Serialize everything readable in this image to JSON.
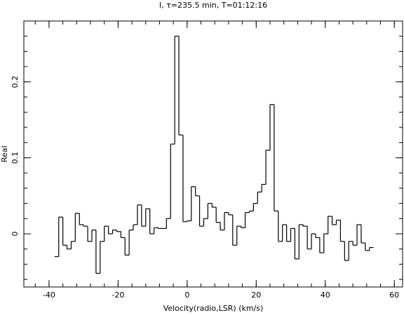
{
  "chart_data": {
    "type": "step",
    "title": "I, τ=235.5 min, T=01:12:16",
    "x_label": "Velocity(radio,LSR) (km/s)",
    "y_label": "Real",
    "color": "#000000",
    "xlim": [
      -47.3,
      62.4
    ],
    "ylim": [
      -0.07,
      0.28
    ],
    "xticks": [
      -40,
      -20,
      0,
      20,
      40,
      60
    ],
    "yticks": [
      0,
      0.1,
      0.2
    ],
    "x": [
      -37.8,
      -36.6,
      -35.4,
      -34.2,
      -33.0,
      -31.8,
      -30.6,
      -29.4,
      -28.2,
      -27.0,
      -25.8,
      -24.6,
      -23.4,
      -22.2,
      -21.0,
      -19.8,
      -18.6,
      -17.4,
      -16.2,
      -15.0,
      -13.8,
      -12.6,
      -11.4,
      -10.2,
      -9.0,
      -7.8,
      -6.6,
      -5.4,
      -4.2,
      -3.0,
      -1.8,
      -0.6,
      0.6,
      1.8,
      3.0,
      4.2,
      5.4,
      6.6,
      7.8,
      9.0,
      10.2,
      11.4,
      12.6,
      13.8,
      15.0,
      16.2,
      17.4,
      18.6,
      19.8,
      21.0,
      22.2,
      23.4,
      24.6,
      25.8,
      27.0,
      28.2,
      29.4,
      30.6,
      31.8,
      33.0,
      34.2,
      35.4,
      36.6,
      37.8,
      39.0,
      40.2,
      41.4,
      42.6,
      43.8,
      45.0,
      46.2,
      47.4,
      48.6,
      49.8,
      51.0,
      52.2,
      53.4
    ],
    "values": [
      -0.03,
      0.022,
      -0.015,
      -0.02,
      -0.01,
      0.027,
      0.012,
      0.01,
      -0.01,
      0.005,
      -0.052,
      -0.01,
      0.01,
      0.0,
      0.005,
      0.003,
      -0.005,
      -0.028,
      0.005,
      0.012,
      0.038,
      0.01,
      0.033,
      0.0,
      0.008,
      0.007,
      0.007,
      0.02,
      0.118,
      0.26,
      0.13,
      0.016,
      0.017,
      0.062,
      0.05,
      0.01,
      0.02,
      0.04,
      0.035,
      0.015,
      0.005,
      0.028,
      0.025,
      -0.015,
      0.01,
      0.008,
      0.028,
      0.03,
      0.04,
      0.055,
      0.065,
      0.11,
      0.17,
      0.03,
      -0.01,
      0.012,
      -0.01,
      0.007,
      -0.033,
      0.012,
      0.01,
      -0.02,
      0.0,
      -0.005,
      -0.025,
      0.0,
      0.023,
      0.012,
      0.018,
      -0.01,
      -0.035,
      -0.01,
      -0.015,
      0.012,
      -0.012,
      -0.022,
      -0.018
    ]
  }
}
